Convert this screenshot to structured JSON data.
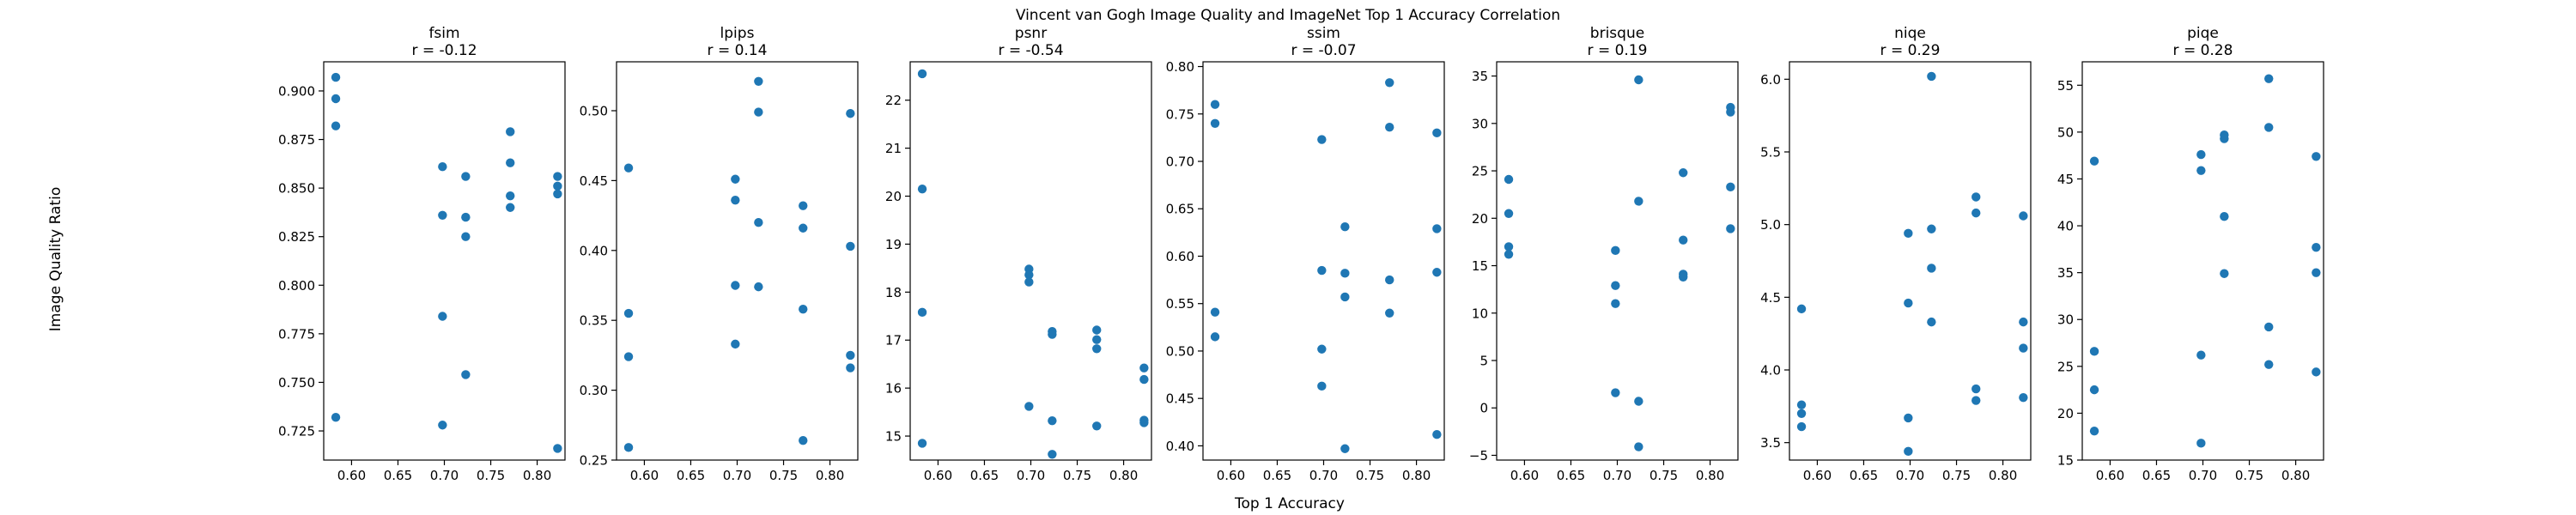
{
  "figure": {
    "title": "Vincent van Gogh Image Quality and ImageNet Top 1 Accuracy Correlation",
    "xlabel": "Top 1 Accuracy",
    "ylabel": "Image Quality Ratio",
    "point_color": "#1f77b4"
  },
  "chart_data": [
    {
      "type": "scatter",
      "title": "fsim",
      "subtitle": "r = -0.12",
      "xlim": [
        0.57,
        0.83
      ],
      "ylim": [
        0.71,
        0.915
      ],
      "xticks": [
        0.6,
        0.65,
        0.7,
        0.75,
        0.8
      ],
      "yticks": [
        0.725,
        0.75,
        0.775,
        0.8,
        0.825,
        0.85,
        0.875,
        0.9
      ],
      "x": [
        0.583,
        0.583,
        0.583,
        0.583,
        0.698,
        0.698,
        0.698,
        0.698,
        0.723,
        0.723,
        0.723,
        0.723,
        0.771,
        0.771,
        0.771,
        0.771,
        0.822,
        0.822,
        0.822,
        0.822
      ],
      "y": [
        0.907,
        0.896,
        0.882,
        0.732,
        0.861,
        0.836,
        0.784,
        0.728,
        0.856,
        0.835,
        0.825,
        0.754,
        0.879,
        0.863,
        0.846,
        0.84,
        0.856,
        0.851,
        0.847,
        0.716
      ]
    },
    {
      "type": "scatter",
      "title": "lpips",
      "subtitle": "r = 0.14",
      "xlim": [
        0.57,
        0.83
      ],
      "ylim": [
        0.25,
        0.535
      ],
      "xticks": [
        0.6,
        0.65,
        0.7,
        0.75,
        0.8
      ],
      "yticks": [
        0.25,
        0.3,
        0.35,
        0.4,
        0.45,
        0.5
      ],
      "x": [
        0.583,
        0.583,
        0.583,
        0.583,
        0.698,
        0.698,
        0.698,
        0.698,
        0.723,
        0.723,
        0.723,
        0.723,
        0.771,
        0.771,
        0.771,
        0.771,
        0.822,
        0.822,
        0.822,
        0.822
      ],
      "y": [
        0.459,
        0.355,
        0.324,
        0.259,
        0.451,
        0.436,
        0.375,
        0.333,
        0.521,
        0.499,
        0.42,
        0.374,
        0.432,
        0.416,
        0.358,
        0.264,
        0.498,
        0.403,
        0.325,
        0.316
      ]
    },
    {
      "type": "scatter",
      "title": "psnr",
      "subtitle": "r = -0.54",
      "xlim": [
        0.57,
        0.83
      ],
      "ylim": [
        14.5,
        22.8
      ],
      "xticks": [
        0.6,
        0.65,
        0.7,
        0.75,
        0.8
      ],
      "yticks": [
        15,
        16,
        17,
        18,
        19,
        20,
        21,
        22
      ],
      "x": [
        0.583,
        0.583,
        0.583,
        0.583,
        0.698,
        0.698,
        0.698,
        0.698,
        0.723,
        0.723,
        0.723,
        0.723,
        0.771,
        0.771,
        0.771,
        0.771,
        0.822,
        0.822,
        0.822,
        0.822
      ],
      "y": [
        22.55,
        20.15,
        17.58,
        14.85,
        18.48,
        18.36,
        18.21,
        15.62,
        17.18,
        17.12,
        15.32,
        14.62,
        17.21,
        17.01,
        16.82,
        15.21,
        16.42,
        16.18,
        15.33,
        15.28
      ]
    },
    {
      "type": "scatter",
      "title": "ssim",
      "subtitle": "r = -0.07",
      "xlim": [
        0.57,
        0.83
      ],
      "ylim": [
        0.385,
        0.805
      ],
      "xticks": [
        0.6,
        0.65,
        0.7,
        0.75,
        0.8
      ],
      "yticks": [
        0.4,
        0.45,
        0.5,
        0.55,
        0.6,
        0.65,
        0.7,
        0.75,
        0.8
      ],
      "x": [
        0.583,
        0.583,
        0.583,
        0.583,
        0.698,
        0.698,
        0.698,
        0.698,
        0.723,
        0.723,
        0.723,
        0.723,
        0.771,
        0.771,
        0.771,
        0.771,
        0.822,
        0.822,
        0.822,
        0.822
      ],
      "y": [
        0.76,
        0.74,
        0.541,
        0.515,
        0.723,
        0.585,
        0.502,
        0.463,
        0.631,
        0.582,
        0.557,
        0.397,
        0.783,
        0.736,
        0.575,
        0.54,
        0.73,
        0.629,
        0.583,
        0.412
      ]
    },
    {
      "type": "scatter",
      "title": "brisque",
      "subtitle": "r = 0.19",
      "xlim": [
        0.57,
        0.83
      ],
      "ylim": [
        -5.5,
        36.5
      ],
      "xticks": [
        0.6,
        0.65,
        0.7,
        0.75,
        0.8
      ],
      "yticks": [
        -5,
        0,
        5,
        10,
        15,
        20,
        25,
        30,
        35
      ],
      "x": [
        0.583,
        0.583,
        0.583,
        0.583,
        0.698,
        0.698,
        0.698,
        0.698,
        0.723,
        0.723,
        0.723,
        0.723,
        0.771,
        0.771,
        0.771,
        0.771,
        0.822,
        0.822,
        0.822,
        0.822
      ],
      "y": [
        24.1,
        20.5,
        17.0,
        16.2,
        16.6,
        12.9,
        11.0,
        1.6,
        34.6,
        21.8,
        0.7,
        -4.1,
        24.8,
        17.7,
        14.1,
        13.8,
        31.7,
        31.2,
        23.3,
        18.9
      ]
    },
    {
      "type": "scatter",
      "title": "niqe",
      "subtitle": "r = 0.29",
      "xlim": [
        0.57,
        0.83
      ],
      "ylim": [
        3.38,
        6.12
      ],
      "xticks": [
        0.6,
        0.65,
        0.7,
        0.75,
        0.8
      ],
      "yticks": [
        3.5,
        4.0,
        4.5,
        5.0,
        5.5,
        6.0
      ],
      "x": [
        0.583,
        0.583,
        0.583,
        0.583,
        0.698,
        0.698,
        0.698,
        0.698,
        0.723,
        0.723,
        0.723,
        0.723,
        0.771,
        0.771,
        0.771,
        0.771,
        0.822,
        0.822,
        0.822,
        0.822
      ],
      "y": [
        4.42,
        3.76,
        3.7,
        3.61,
        4.94,
        4.46,
        3.67,
        3.44,
        6.02,
        4.97,
        4.7,
        4.33,
        5.19,
        5.08,
        3.87,
        3.79,
        5.06,
        4.33,
        4.15,
        3.81
      ]
    },
    {
      "type": "scatter",
      "title": "piqe",
      "subtitle": "r = 0.28",
      "xlim": [
        0.57,
        0.83
      ],
      "ylim": [
        15.0,
        57.5
      ],
      "xticks": [
        0.6,
        0.65,
        0.7,
        0.75,
        0.8
      ],
      "yticks": [
        15,
        20,
        25,
        30,
        35,
        40,
        45,
        50,
        55
      ],
      "x": [
        0.583,
        0.583,
        0.583,
        0.583,
        0.698,
        0.698,
        0.698,
        0.698,
        0.723,
        0.723,
        0.723,
        0.723,
        0.771,
        0.771,
        0.771,
        0.771,
        0.822,
        0.822,
        0.822,
        0.822
      ],
      "y": [
        46.9,
        26.6,
        22.5,
        18.1,
        47.6,
        45.9,
        26.2,
        16.8,
        49.7,
        49.3,
        41.0,
        34.9,
        55.7,
        50.5,
        29.2,
        25.2,
        47.4,
        37.7,
        35.0,
        24.4
      ]
    }
  ]
}
